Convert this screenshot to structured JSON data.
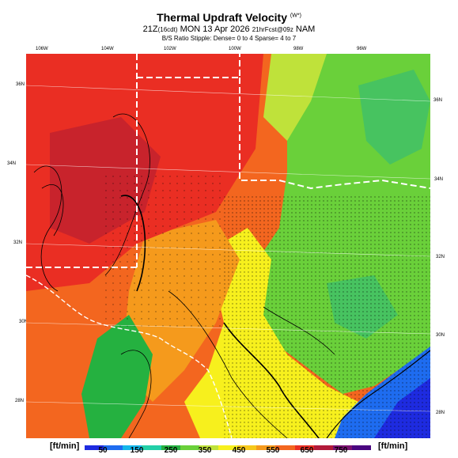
{
  "header": {
    "title": "Thermal Updraft Velocity",
    "title_units": "(W*)",
    "line1_time": "21Z",
    "line1_local": "(16cdt)",
    "line1_date": "MON 13 Apr 2026",
    "line1_run": "21hrFcst@09z",
    "line1_model": "NAM",
    "line2": "B/S Ratio Stipple: Dense= 0 to 4  Sparse= 4 to 7"
  },
  "map": {
    "lon_labels": [
      "106W",
      "104W",
      "102W",
      "100W",
      "98W",
      "96W"
    ],
    "lat_labels_left": [
      "36N",
      "34N",
      "32N",
      "30N",
      "28N"
    ],
    "lat_labels_right": [
      "36N",
      "34N",
      "32N",
      "30N",
      "28N"
    ]
  },
  "colorbar": {
    "unit_left": "[ft/min]",
    "unit_right": "[ft/min]",
    "ticks": [
      "50",
      "150",
      "250",
      "350",
      "450",
      "550",
      "650",
      "750"
    ],
    "colors": [
      "#1e2be0",
      "#1e6cf0",
      "#14b6ea",
      "#22cfa8",
      "#25b140",
      "#6ad03a",
      "#bfe23a",
      "#f7f01d",
      "#f6c81b",
      "#f59a1c",
      "#f3661f",
      "#ea2e23",
      "#b21a3a",
      "#7a1170",
      "#4a0680"
    ]
  }
}
